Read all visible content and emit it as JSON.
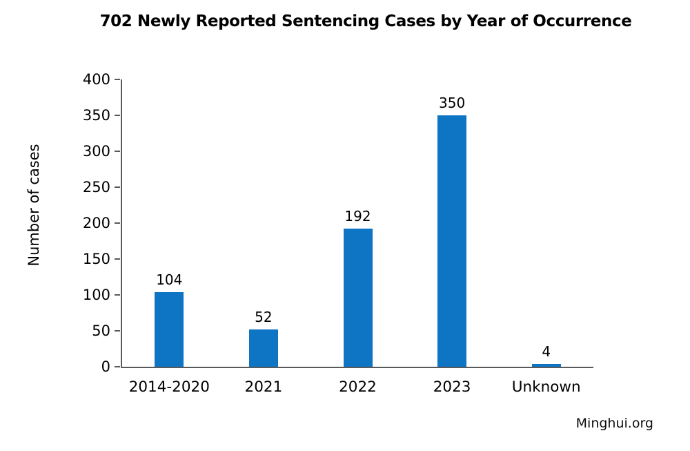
{
  "title": "702 Newly Reported Sentencing Cases by Year of Occurrence",
  "source": "Minghui.org",
  "colors": {
    "bar": "#0e74c4",
    "axis": "#595959",
    "text": "#000000",
    "background": "#ffffff"
  },
  "chart_data": {
    "type": "bar",
    "title": "702 Newly Reported Sentencing Cases by Year of Occurrence",
    "categories": [
      "2014-2020",
      "2021",
      "2022",
      "2023",
      "Unknown"
    ],
    "values": [
      104,
      52,
      192,
      350,
      4
    ],
    "data_labels": [
      "104",
      "52",
      "192",
      "350",
      "4"
    ],
    "xlabel": "",
    "ylabel": "Number of cases",
    "ylim": [
      0,
      400
    ],
    "yticks": [
      0,
      50,
      100,
      150,
      200,
      250,
      300,
      350,
      400
    ],
    "grid": false,
    "legend": null,
    "bar_color": "#0e74c4",
    "annotation": "Minghui.org"
  }
}
